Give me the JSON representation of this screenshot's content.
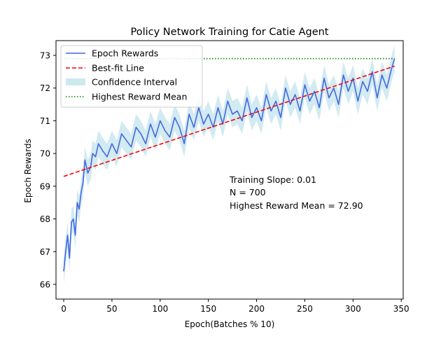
{
  "chart_data": {
    "type": "line",
    "title": "Policy Network Training for Catie Agent",
    "xlabel": "Epoch(Batches % 10)",
    "ylabel": "Epoch Rewards",
    "xlim": [
      -8,
      352
    ],
    "ylim": [
      65.55,
      73.45
    ],
    "xticks": [
      0,
      50,
      100,
      150,
      200,
      250,
      300,
      350
    ],
    "yticks": [
      66,
      67,
      68,
      69,
      70,
      71,
      72,
      73
    ],
    "grid": false,
    "legend_position": "upper-left",
    "legend": [
      {
        "label": "Epoch Rewards",
        "style": "solid-line",
        "color": "#4169e1"
      },
      {
        "label": "Best-fit Line",
        "style": "dashed-line",
        "color": "#ff0000"
      },
      {
        "label": "Confidence Interval",
        "style": "patch",
        "color": "#add8e6"
      },
      {
        "label": "Highest Reward Mean",
        "style": "dotted-line",
        "color": "#008000"
      }
    ],
    "annotations": [
      "Training Slope: 0.01",
      "N = 700",
      "Highest Reward Mean = 72.90"
    ],
    "series": [
      {
        "name": "Epoch Rewards",
        "kind": "line",
        "color": "#4169e1",
        "x": [
          0,
          2,
          4,
          6,
          8,
          10,
          12,
          14,
          16,
          18,
          20,
          22,
          25,
          28,
          30,
          33,
          36,
          40,
          45,
          50,
          55,
          60,
          65,
          70,
          75,
          80,
          85,
          90,
          95,
          100,
          105,
          110,
          115,
          120,
          125,
          130,
          135,
          140,
          145,
          150,
          155,
          160,
          165,
          170,
          175,
          180,
          185,
          190,
          195,
          200,
          205,
          210,
          215,
          220,
          225,
          230,
          235,
          240,
          245,
          250,
          255,
          260,
          265,
          270,
          275,
          280,
          285,
          290,
          295,
          300,
          305,
          310,
          315,
          320,
          325,
          330,
          335,
          340,
          343
        ],
        "y": [
          66.4,
          67.0,
          67.5,
          66.8,
          67.9,
          68.0,
          67.5,
          68.5,
          68.3,
          68.8,
          69.1,
          69.8,
          69.4,
          69.6,
          70.0,
          69.9,
          70.3,
          70.1,
          69.9,
          70.3,
          70.0,
          70.6,
          70.4,
          70.2,
          70.8,
          70.6,
          70.3,
          70.9,
          70.5,
          71.0,
          70.7,
          70.5,
          71.1,
          70.8,
          70.3,
          71.2,
          70.8,
          71.4,
          70.9,
          71.2,
          70.8,
          71.4,
          70.9,
          71.6,
          71.2,
          71.3,
          71.0,
          71.7,
          71.1,
          71.4,
          71.0,
          71.8,
          71.3,
          71.6,
          71.1,
          72.0,
          71.5,
          71.8,
          71.3,
          72.1,
          71.6,
          71.9,
          71.4,
          72.3,
          71.7,
          72.0,
          71.5,
          72.4,
          71.9,
          72.3,
          71.6,
          72.2,
          71.9,
          72.5,
          71.7,
          72.4,
          72.0,
          72.6,
          72.9
        ]
      },
      {
        "name": "Best-fit Line",
        "kind": "line",
        "color": "#ff0000",
        "x": [
          0,
          343
        ],
        "y": [
          69.3,
          72.67
        ]
      },
      {
        "name": "Highest Reward Mean",
        "kind": "hline",
        "color": "#008000",
        "x": [
          0,
          343
        ],
        "y": [
          72.9,
          72.9
        ]
      }
    ],
    "confidence_band_halfwidth": 0.4
  }
}
